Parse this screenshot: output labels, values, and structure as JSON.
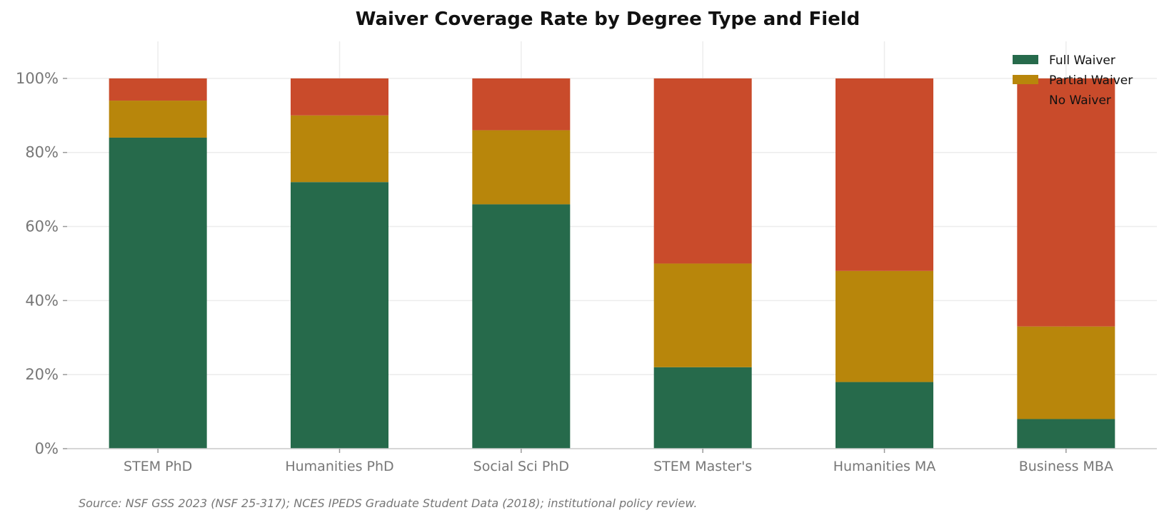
{
  "chart_data": {
    "type": "bar",
    "stacked": true,
    "title": "Waiver Coverage Rate by Degree Type and Field",
    "xlabel": "",
    "ylabel": "",
    "categories": [
      "STEM PhD",
      "Humanities PhD",
      "Social Sci PhD",
      "STEM Master's",
      "Humanities MA",
      "Business MBA"
    ],
    "series": [
      {
        "name": "Full Waiver",
        "color": "#266a4b",
        "values": [
          84,
          72,
          66,
          22,
          18,
          8
        ]
      },
      {
        "name": "Partial Waiver",
        "color": "#b8860b",
        "values": [
          10,
          18,
          20,
          28,
          30,
          25
        ]
      },
      {
        "name": "No Waiver",
        "color": "#c94b2b",
        "values": [
          6,
          10,
          14,
          50,
          52,
          67
        ]
      }
    ],
    "ylim": [
      0,
      110
    ],
    "yticks": [
      0,
      20,
      40,
      60,
      80,
      100
    ],
    "ytick_labels": [
      "0%",
      "20%",
      "40%",
      "60%",
      "80%",
      "100%"
    ],
    "grid": true,
    "legend_position": "top-right",
    "source": "Source: NSF GSS 2023 (NSF 25-317); NCES IPEDS Graduate Student Data (2018); institutional policy review."
  }
}
